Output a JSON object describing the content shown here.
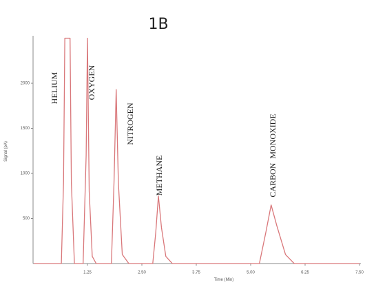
{
  "chart_data": {
    "type": "line",
    "title": "1B",
    "x_label": "Time (Min)",
    "y_label": "Signal (pA)",
    "x": [
      0.02,
      0.65,
      0.7,
      0.73,
      0.85,
      0.88,
      0.95,
      1.15,
      1.22,
      1.25,
      1.29,
      1.36,
      1.45,
      1.8,
      1.86,
      1.91,
      1.96,
      2.05,
      2.2,
      2.75,
      2.82,
      2.88,
      2.95,
      3.05,
      3.2,
      5.2,
      5.35,
      5.47,
      5.6,
      5.8,
      6.0,
      7.5
    ],
    "values": [
      0,
      0,
      900,
      2500,
      2500,
      900,
      0,
      0,
      1200,
      2500,
      800,
      80,
      0,
      0,
      900,
      1930,
      900,
      100,
      0,
      0,
      350,
      750,
      400,
      80,
      0,
      0,
      350,
      650,
      420,
      100,
      0,
      0
    ],
    "color": "#d9777a",
    "xlim": [
      0,
      7.5
    ],
    "ylim": [
      0,
      2500
    ],
    "xticks": [
      1.25,
      {
        "value": 2.5,
        "label": "2.50"
      },
      3.75,
      {
        "value": 5,
        "label": "5.00"
      },
      6.25,
      {
        "value": 7.5,
        "label": "7.50"
      }
    ],
    "yticks": [
      500,
      1000,
      1500,
      2000
    ],
    "annotations": [
      "HELIUM",
      "OXYGEN",
      "NITROGEN",
      "METHANE",
      "CARBON  MONOXIDE"
    ]
  }
}
